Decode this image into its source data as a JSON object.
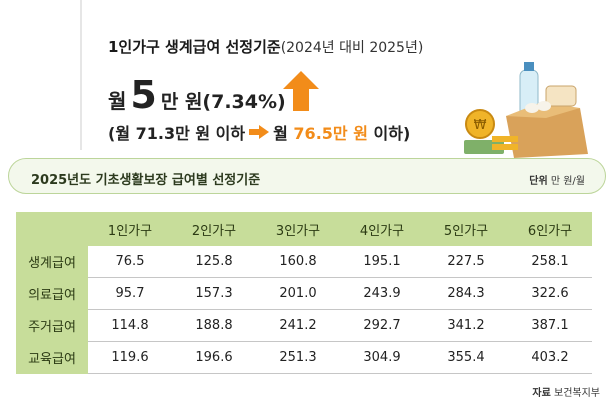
{
  "headline": {
    "main": "1인가구 생계급여 선정기준",
    "sub": "(2024년 대비 2025년)"
  },
  "increase": {
    "prefix": "월",
    "big": "5",
    "rest": "만 원(7.34%)"
  },
  "change": {
    "open": "(월 71.3만 원 이하",
    "to_prefix": "월",
    "new_value": "76.5만 원",
    "close": "이하)"
  },
  "banner": {
    "title": "2025년도 기초생활보장 급여별 선정기준",
    "unit_label": "단위",
    "unit_value": "만 원/월"
  },
  "table": {
    "columns": [
      "1인가구",
      "2인가구",
      "3인가구",
      "4인가구",
      "5인가구",
      "6인가구"
    ],
    "rows": [
      {
        "label": "생계급여",
        "values": [
          "76.5",
          "125.8",
          "160.8",
          "195.1",
          "227.5",
          "258.1"
        ]
      },
      {
        "label": "의료급여",
        "values": [
          "95.7",
          "157.3",
          "201.0",
          "243.9",
          "284.3",
          "322.6"
        ]
      },
      {
        "label": "주거급여",
        "values": [
          "114.8",
          "188.8",
          "241.2",
          "292.7",
          "341.2",
          "387.1"
        ]
      },
      {
        "label": "교육급여",
        "values": [
          "119.6",
          "196.6",
          "251.3",
          "304.9",
          "355.4",
          "403.2"
        ]
      }
    ]
  },
  "source": {
    "label": "자료",
    "value": "보건복지부"
  },
  "colors": {
    "accent_orange": "#f28c1a",
    "header_green": "#c7dd9a",
    "banner_bg": "#f3f8ec",
    "banner_border": "#bcd59a"
  }
}
